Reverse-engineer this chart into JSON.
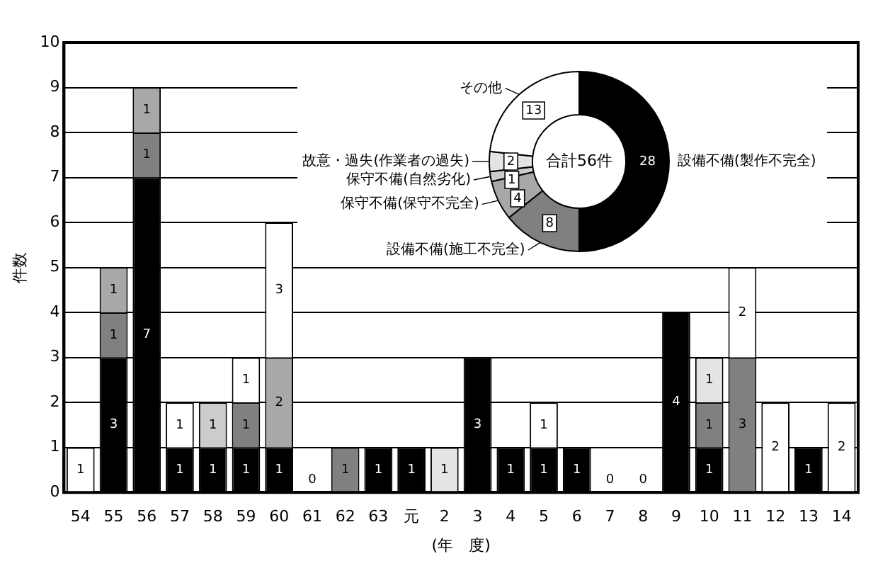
{
  "chart_data": [
    {
      "type": "bar",
      "stacked": true,
      "ylabel": "件数",
      "xlabel": "(年　度)",
      "categories": [
        "54",
        "55",
        "56",
        "57",
        "58",
        "59",
        "60",
        "61",
        "62",
        "63",
        "元",
        "2",
        "3",
        "4",
        "5",
        "6",
        "7",
        "8",
        "9",
        "10",
        "11",
        "12",
        "13",
        "14"
      ],
      "series": [
        {
          "color": "#000000",
          "values": [
            null,
            3,
            7,
            1,
            1,
            1,
            1,
            null,
            null,
            1,
            1,
            null,
            3,
            1,
            1,
            1,
            null,
            null,
            4,
            1,
            null,
            null,
            1,
            null
          ]
        },
        {
          "color": "#808080",
          "values": [
            null,
            1,
            1,
            null,
            null,
            1,
            null,
            null,
            1,
            null,
            null,
            null,
            null,
            null,
            null,
            null,
            null,
            null,
            null,
            1,
            3,
            null,
            null,
            null
          ]
        },
        {
          "color": "#a8a8a8",
          "values": [
            null,
            1,
            1,
            null,
            null,
            null,
            2,
            null,
            null,
            null,
            null,
            null,
            null,
            null,
            null,
            null,
            null,
            null,
            null,
            null,
            null,
            null,
            null,
            null
          ]
        },
        {
          "color": "#cccccc",
          "values": [
            null,
            null,
            null,
            null,
            1,
            null,
            null,
            null,
            null,
            null,
            null,
            null,
            null,
            null,
            null,
            null,
            null,
            null,
            null,
            null,
            null,
            null,
            null,
            null
          ]
        },
        {
          "color": "#e4e4e4",
          "values": [
            null,
            null,
            null,
            null,
            null,
            null,
            null,
            null,
            null,
            null,
            null,
            1,
            null,
            null,
            null,
            null,
            null,
            null,
            null,
            1,
            null,
            null,
            null,
            null
          ]
        },
        {
          "color": "#ffffff",
          "values": [
            1,
            null,
            null,
            1,
            null,
            1,
            3,
            null,
            null,
            null,
            null,
            null,
            null,
            null,
            1,
            null,
            null,
            null,
            null,
            null,
            2,
            2,
            null,
            2
          ]
        }
      ],
      "totals": [
        null,
        null,
        null,
        null,
        null,
        null,
        null,
        "0",
        null,
        null,
        null,
        null,
        null,
        null,
        null,
        null,
        "0",
        "0",
        null,
        null,
        null,
        null,
        null,
        null
      ],
      "data_labels": true,
      "ylim": [
        0,
        10
      ],
      "yticks": [
        0,
        1,
        2,
        3,
        4,
        5,
        6,
        7,
        8,
        9,
        10
      ],
      "grid": "y"
    },
    {
      "type": "donut",
      "title": "合計56件",
      "categories": [
        "設備不備(製作不完全)",
        "設備不備(施工不完全)",
        "保守不備(保守不完全)",
        "保守不備(自然劣化)",
        "故意・過失(作業者の過失)",
        "その他"
      ],
      "values": [
        28,
        8,
        4,
        1,
        2,
        13
      ],
      "colors": [
        "#000000",
        "#808080",
        "#a8a8a8",
        "#cccccc",
        "#e4e4e4",
        "#ffffff"
      ],
      "data_labels": true
    }
  ]
}
